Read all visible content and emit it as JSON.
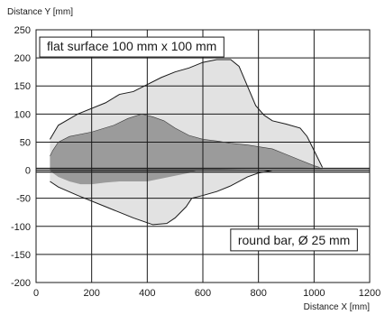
{
  "chart_data": {
    "type": "area",
    "title": "",
    "xlabel": "Distance X [mm]",
    "ylabel": "Distance Y [mm]",
    "xlim": [
      0,
      1200
    ],
    "ylim": [
      -200,
      250
    ],
    "x_ticks": [
      0,
      200,
      400,
      600,
      800,
      1000,
      1200
    ],
    "y_ticks": [
      250,
      200,
      150,
      100,
      50,
      0,
      -50,
      -100,
      -150,
      -200
    ],
    "grid": true,
    "annotations": [
      "flat surface 100 mm x 100 mm",
      "round bar, Ø 25 mm"
    ],
    "series": [
      {
        "label": "flat surface 100 mm x 100 mm",
        "color": "#e2e2e2",
        "upper": [
          [
            50,
            55
          ],
          [
            80,
            80
          ],
          [
            150,
            100
          ],
          [
            250,
            120
          ],
          [
            300,
            135
          ],
          [
            350,
            140
          ],
          [
            450,
            165
          ],
          [
            500,
            175
          ],
          [
            550,
            182
          ],
          [
            600,
            192
          ],
          [
            650,
            197
          ],
          [
            700,
            197
          ],
          [
            730,
            185
          ],
          [
            760,
            150
          ],
          [
            790,
            115
          ],
          [
            820,
            98
          ],
          [
            850,
            88
          ],
          [
            900,
            82
          ],
          [
            950,
            75
          ],
          [
            975,
            60
          ],
          [
            1000,
            35
          ],
          [
            1030,
            5
          ]
        ],
        "lower": [
          [
            50,
            -20
          ],
          [
            80,
            -30
          ],
          [
            150,
            -45
          ],
          [
            250,
            -65
          ],
          [
            350,
            -85
          ],
          [
            420,
            -97
          ],
          [
            470,
            -95
          ],
          [
            500,
            -85
          ],
          [
            540,
            -65
          ],
          [
            560,
            -50
          ],
          [
            600,
            -45
          ],
          [
            650,
            -38
          ],
          [
            700,
            -28
          ],
          [
            760,
            -12
          ],
          [
            800,
            -5
          ],
          [
            850,
            0
          ],
          [
            950,
            0
          ],
          [
            1030,
            0
          ]
        ]
      },
      {
        "label": "round bar, Ø 25 mm",
        "color": "#9b9b9b",
        "upper": [
          [
            50,
            25
          ],
          [
            60,
            35
          ],
          [
            80,
            50
          ],
          [
            120,
            60
          ],
          [
            200,
            68
          ],
          [
            280,
            80
          ],
          [
            330,
            92
          ],
          [
            380,
            100
          ],
          [
            420,
            95
          ],
          [
            460,
            88
          ],
          [
            500,
            75
          ],
          [
            550,
            62
          ],
          [
            600,
            55
          ],
          [
            650,
            52
          ],
          [
            700,
            48
          ],
          [
            760,
            45
          ],
          [
            850,
            38
          ],
          [
            900,
            28
          ],
          [
            950,
            18
          ],
          [
            1000,
            8
          ],
          [
            1020,
            5
          ]
        ],
        "lower": [
          [
            50,
            0
          ],
          [
            60,
            -5
          ],
          [
            80,
            -12
          ],
          [
            120,
            -20
          ],
          [
            160,
            -25
          ],
          [
            200,
            -25
          ],
          [
            250,
            -22
          ],
          [
            300,
            -20
          ],
          [
            350,
            -20
          ],
          [
            400,
            -20
          ],
          [
            450,
            -15
          ],
          [
            500,
            -10
          ],
          [
            550,
            -5
          ],
          [
            580,
            0
          ]
        ]
      }
    ]
  }
}
